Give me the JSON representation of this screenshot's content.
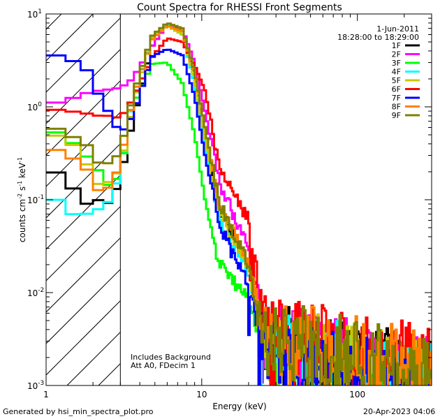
{
  "chart_data": {
    "type": "line",
    "title": "Count Spectra for RHESSI Front Segments",
    "xlabel": "Energy (keV)",
    "ylabel_parts": [
      "counts cm",
      "-2",
      " s",
      "-1",
      " keV",
      "-1"
    ],
    "xscale": "log",
    "yscale": "log",
    "xlim": [
      1,
      300
    ],
    "ylim": [
      0.001,
      10
    ],
    "x_tick_labels": [
      {
        "value": 1,
        "label": "1"
      },
      {
        "value": 10,
        "label": "10"
      },
      {
        "value": 100,
        "label": "100"
      }
    ],
    "y_tick_labels": [
      {
        "value": 0.001,
        "base": "10",
        "exp": "-3"
      },
      {
        "value": 0.01,
        "base": "10",
        "exp": "-2"
      },
      {
        "value": 0.1,
        "base": "10",
        "exp": "-1"
      },
      {
        "value": 1,
        "base": "10",
        "exp": "0"
      },
      {
        "value": 10,
        "base": "10",
        "exp": "1"
      }
    ],
    "shaded_region_keV": [
      1,
      3
    ],
    "annotations": {
      "date": "1-Jun-2011",
      "time_range": "18:28:00 to 18:29:00",
      "background_note": "Includes Background",
      "attenuator_note": "Att A0, FDecim 1"
    },
    "series": [
      {
        "name": "1F",
        "color": "#000000",
        "lead": [
          0.24,
          0.15,
          0.09,
          0.1,
          0.09,
          0.17,
          0.7,
          4.5,
          7.8,
          6.5,
          2.2,
          0.5,
          0.08,
          0.02
        ],
        "tail": 0.0031
      },
      {
        "name": "2F",
        "color": "#ff00ff",
        "lead": [
          1.05,
          1.2,
          1.4,
          1.5,
          1.55,
          1.6,
          2.0,
          4.5,
          7.8,
          7.0,
          3.0,
          0.9,
          0.15,
          0.03
        ],
        "tail": 0.0033
      },
      {
        "name": "3F",
        "color": "#00ff00",
        "lead": [
          0.6,
          0.45,
          0.3,
          0.2,
          0.13,
          0.2,
          1.0,
          2.9,
          3.0,
          1.8,
          0.5,
          0.1,
          0.02,
          0.0085
        ],
        "tail": 0.0026
      },
      {
        "name": "4F",
        "color": "#00ffff",
        "lead": [
          0.13,
          0.07,
          0.07,
          0.08,
          0.1,
          0.2,
          1.2,
          5.5,
          7.9,
          6.0,
          1.8,
          0.4,
          0.06,
          0.016
        ],
        "tail": 0.0028
      },
      {
        "name": "5F",
        "color": "#c8c800",
        "lead": [
          0.52,
          0.45,
          0.25,
          0.14,
          0.16,
          0.22,
          1.0,
          5.5,
          7.5,
          6.0,
          2.0,
          0.45,
          0.07,
          0.018
        ],
        "tail": 0.003
      },
      {
        "name": "6F",
        "color": "#ff0000",
        "lead": [
          0.95,
          0.9,
          0.85,
          0.8,
          0.8,
          0.75,
          1.2,
          3.4,
          5.5,
          5.0,
          2.8,
          1.5,
          0.2,
          0.06
        ],
        "tail": 0.004
      },
      {
        "name": "7F",
        "color": "#0000ff",
        "lead": [
          3.8,
          3.3,
          2.6,
          1.3,
          0.8,
          0.5,
          0.8,
          3.5,
          4.2,
          3.6,
          1.3,
          0.3,
          0.05,
          0.012
        ],
        "tail": 0.0022
      },
      {
        "name": "8F",
        "color": "#ff8000",
        "lead": [
          0.38,
          0.3,
          0.22,
          0.12,
          0.14,
          0.25,
          1.2,
          5.3,
          7.5,
          6.5,
          2.3,
          0.6,
          0.09,
          0.02
        ],
        "tail": 0.0036
      },
      {
        "name": "9F",
        "color": "#808000",
        "lead": [
          0.65,
          0.5,
          0.4,
          0.24,
          0.25,
          0.33,
          1.3,
          5.8,
          8.0,
          7.0,
          2.4,
          0.6,
          0.09,
          0.02
        ],
        "tail": 0.0034
      }
    ],
    "lead_energies_keV": [
      1.0,
      1.4,
      1.8,
      2.2,
      2.6,
      3.0,
      3.6,
      4.8,
      6.0,
      7.5,
      9.0,
      10.5,
      13.0,
      20.0
    ]
  },
  "footer": {
    "generated_by": "Generated by hsi_min_spectra_plot.pro",
    "timestamp": "20-Apr-2023 04:06"
  }
}
